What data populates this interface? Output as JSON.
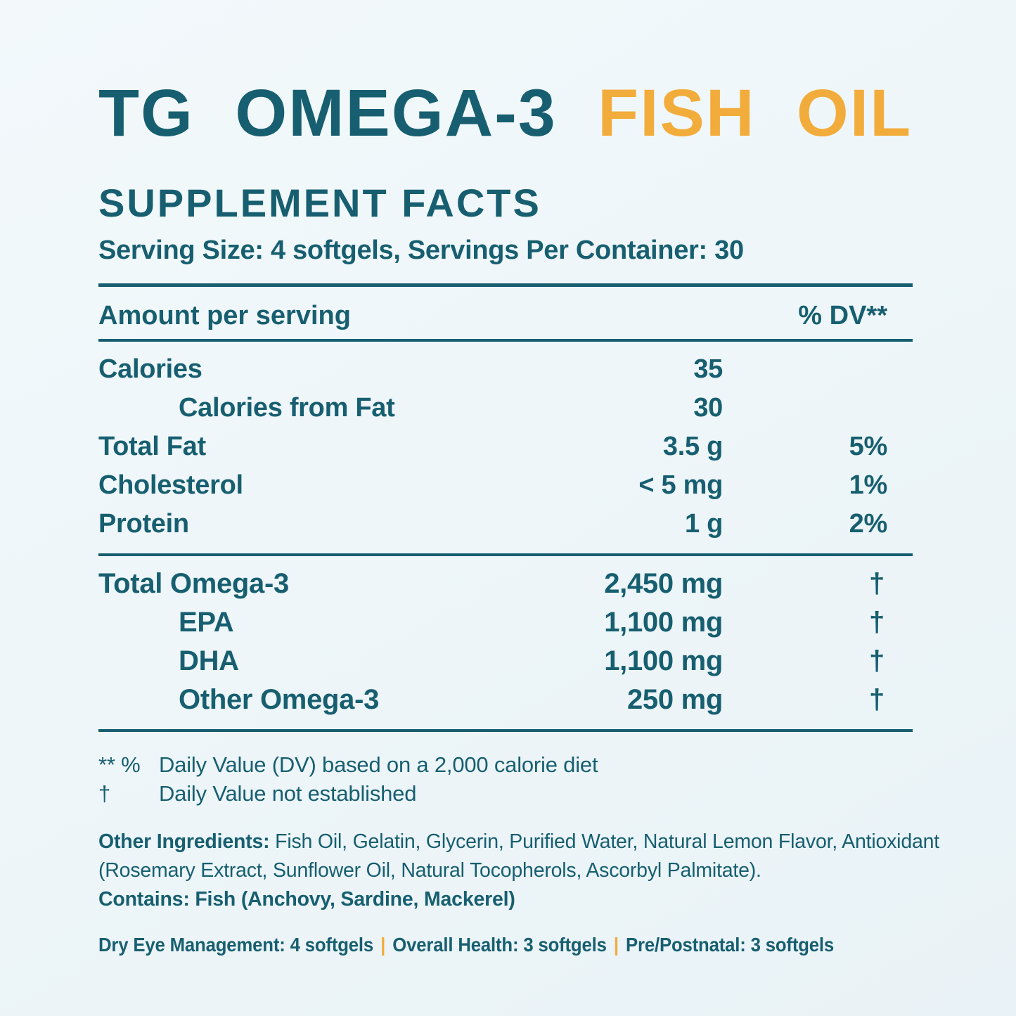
{
  "colors": {
    "teal": "#175F70",
    "orange": "#F2AC3B",
    "background": "#EEF5F9"
  },
  "header": {
    "title_main": "TG OMEGA-3",
    "title_accent": "FISH OIL",
    "facts_heading": "SUPPLEMENT FACTS",
    "serving_line": "Serving Size: 4 softgels, Servings Per Container: 30"
  },
  "table": {
    "amount_header": "Amount per serving",
    "dv_header": "% DV**",
    "rows": [
      {
        "label": "Calories",
        "indent": false,
        "amount": "35",
        "dv": ""
      },
      {
        "label": "Calories from Fat",
        "indent": true,
        "amount": "30",
        "dv": ""
      },
      {
        "label": "Total Fat",
        "indent": false,
        "amount": "3.5 g",
        "dv": "5%"
      },
      {
        "label": "Cholesterol",
        "indent": false,
        "amount": "< 5 mg",
        "dv": "1%"
      },
      {
        "label": "Protein",
        "indent": false,
        "amount": "1 g",
        "dv": "2%"
      }
    ],
    "omega_rows": [
      {
        "label": "Total Omega-3",
        "indent": false,
        "amount": "2,450 mg",
        "dv": "†"
      },
      {
        "label": "EPA",
        "indent": true,
        "amount": "1,100 mg",
        "dv": "†"
      },
      {
        "label": "DHA",
        "indent": true,
        "amount": "1,100 mg",
        "dv": "†"
      },
      {
        "label": "Other Omega-3",
        "indent": true,
        "amount": "250 mg",
        "dv": "†"
      }
    ]
  },
  "footnotes": [
    {
      "marker": "** %",
      "text": "Daily Value (DV) based on a 2,000 calorie diet"
    },
    {
      "marker": "†",
      "text": "Daily Value not established"
    }
  ],
  "ingredients": {
    "lead": "Other Ingredients:",
    "text": " Fish Oil, Gelatin, Glycerin, Purified Water, Natural Lemon Flavor, Antioxidant (Rosemary Extract, Sunflower Oil, Natural Tocopherols, Ascorbyl Palmitate).",
    "contains": "Contains: Fish (Anchovy, Sardine, Mackerel)"
  },
  "dosage": {
    "items": [
      "Dry Eye Management: 4 softgels",
      "Overall Health: 3 softgels",
      "Pre/Postnatal: 3 softgels"
    ],
    "separator": "|"
  }
}
